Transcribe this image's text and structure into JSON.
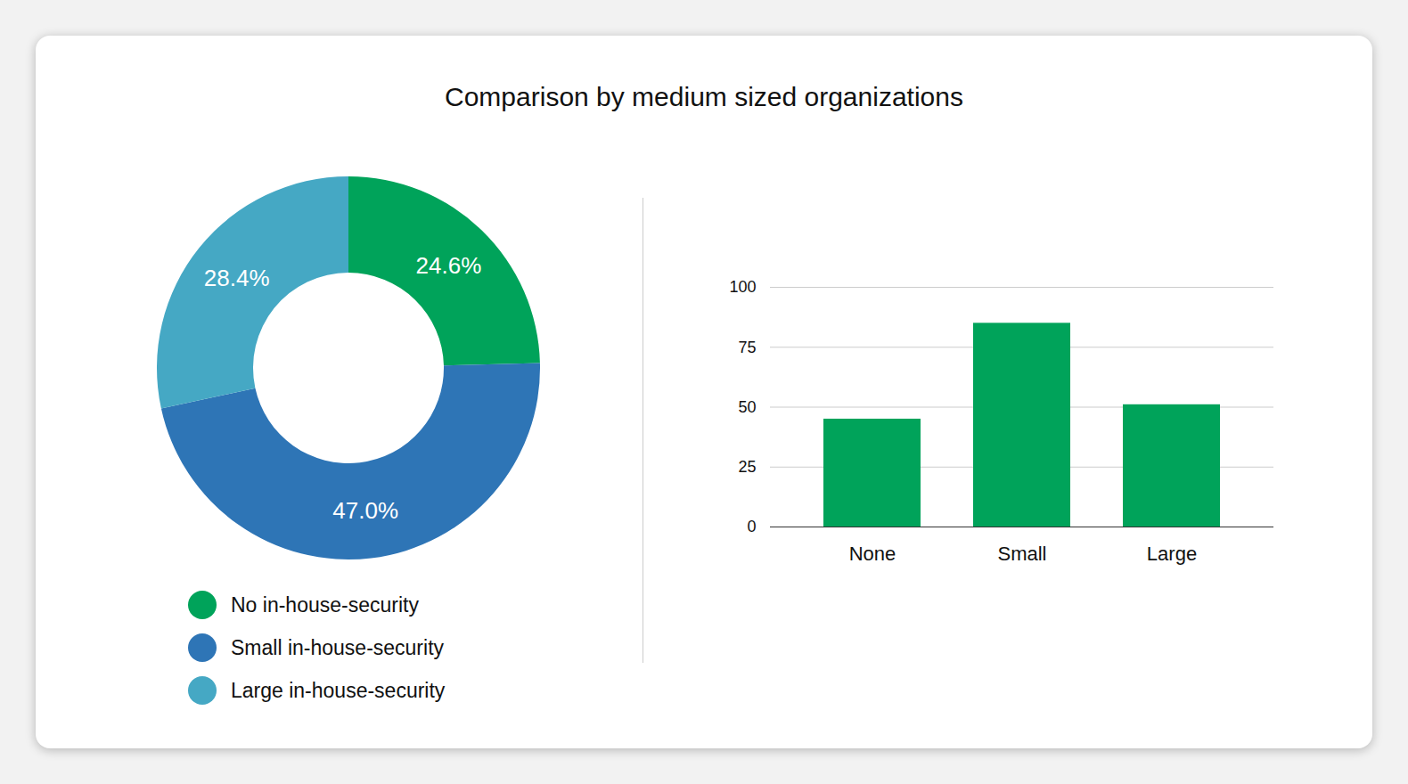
{
  "title": "Comparison by medium sized organizations",
  "chart_data": [
    {
      "type": "pie",
      "categories": [
        "No in-house-security",
        "Small in-house-security",
        "Large in-house-security"
      ],
      "values": [
        24.6,
        47.0,
        28.4
      ],
      "value_labels": [
        "24.6%",
        "47.0%",
        "28.4%"
      ],
      "colors": [
        "#00a35a",
        "#2e75b6",
        "#45a8c4"
      ],
      "data_labels": true,
      "legend": "bottom"
    },
    {
      "type": "bar",
      "categories": [
        "None",
        "Small",
        "Large"
      ],
      "values": [
        45,
        85,
        51
      ],
      "color": "#00a35a",
      "ylim": [
        0,
        100
      ],
      "yticks": [
        0,
        25,
        50,
        75,
        100
      ],
      "grid": true
    }
  ]
}
